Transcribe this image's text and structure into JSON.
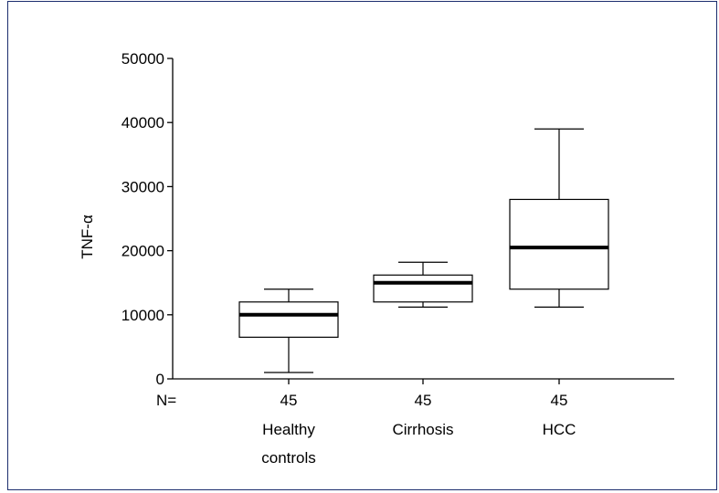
{
  "chart_data": {
    "type": "boxplot",
    "ylabel": "TNF-α",
    "ylim": [
      0,
      50000
    ],
    "yticks": [
      0,
      10000,
      20000,
      30000,
      40000,
      50000
    ],
    "n_label": "N=",
    "grid": false,
    "categories": [
      {
        "label_lines": [
          "Healthy",
          "controls"
        ],
        "n": "45",
        "whisker_low": 1000,
        "q1": 6500,
        "median": 10000,
        "q3": 12000,
        "whisker_high": 14000
      },
      {
        "label_lines": [
          "Cirrhosis"
        ],
        "n": "45",
        "whisker_low": 11200,
        "q1": 12000,
        "median": 15000,
        "q3": 16200,
        "whisker_high": 18200
      },
      {
        "label_lines": [
          "HCC"
        ],
        "n": "45",
        "whisker_low": 11200,
        "q1": 14000,
        "median": 20500,
        "q3": 28000,
        "whisker_high": 39000
      }
    ]
  }
}
